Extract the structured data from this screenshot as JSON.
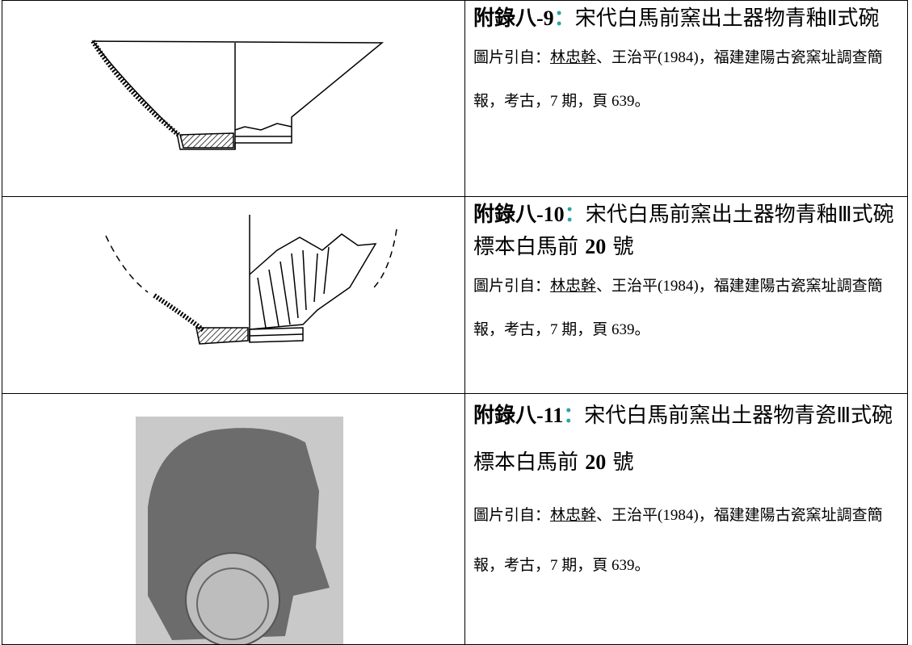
{
  "table": {
    "rows": [
      {
        "label": "附錄八-9",
        "colon": "：",
        "title": "宋代白馬前窯出土器物青釉Ⅱ式碗",
        "source_prefix": "圖片引自：",
        "author": "林忠幹",
        "source_rest": "、王治平(1984)，福建建陽古瓷窯址調查簡報，考古，7 期，頁 639。"
      },
      {
        "label": "附錄八-10",
        "colon": "：",
        "title": "宋代白馬前窯出土器物青釉Ⅲ式碗標本白馬前",
        "number": "20",
        "suffix": "號",
        "source_prefix": "圖片引自：",
        "author": "林忠幹",
        "source_rest": "、王治平(1984)，福建建陽古瓷窯址調查簡報，考古，7 期，頁 639。"
      },
      {
        "label": "附錄八-11",
        "colon": "：",
        "title": "宋代白馬前窯出土器物青瓷Ⅲ式碗標本白馬前",
        "number": "20",
        "suffix": "號",
        "source_prefix": "圖片引自：",
        "author": "林忠幹",
        "source_rest": "、王治平(1984)，福建建陽古瓷窯址調查簡報，考古，7 期，頁 639。"
      }
    ]
  }
}
